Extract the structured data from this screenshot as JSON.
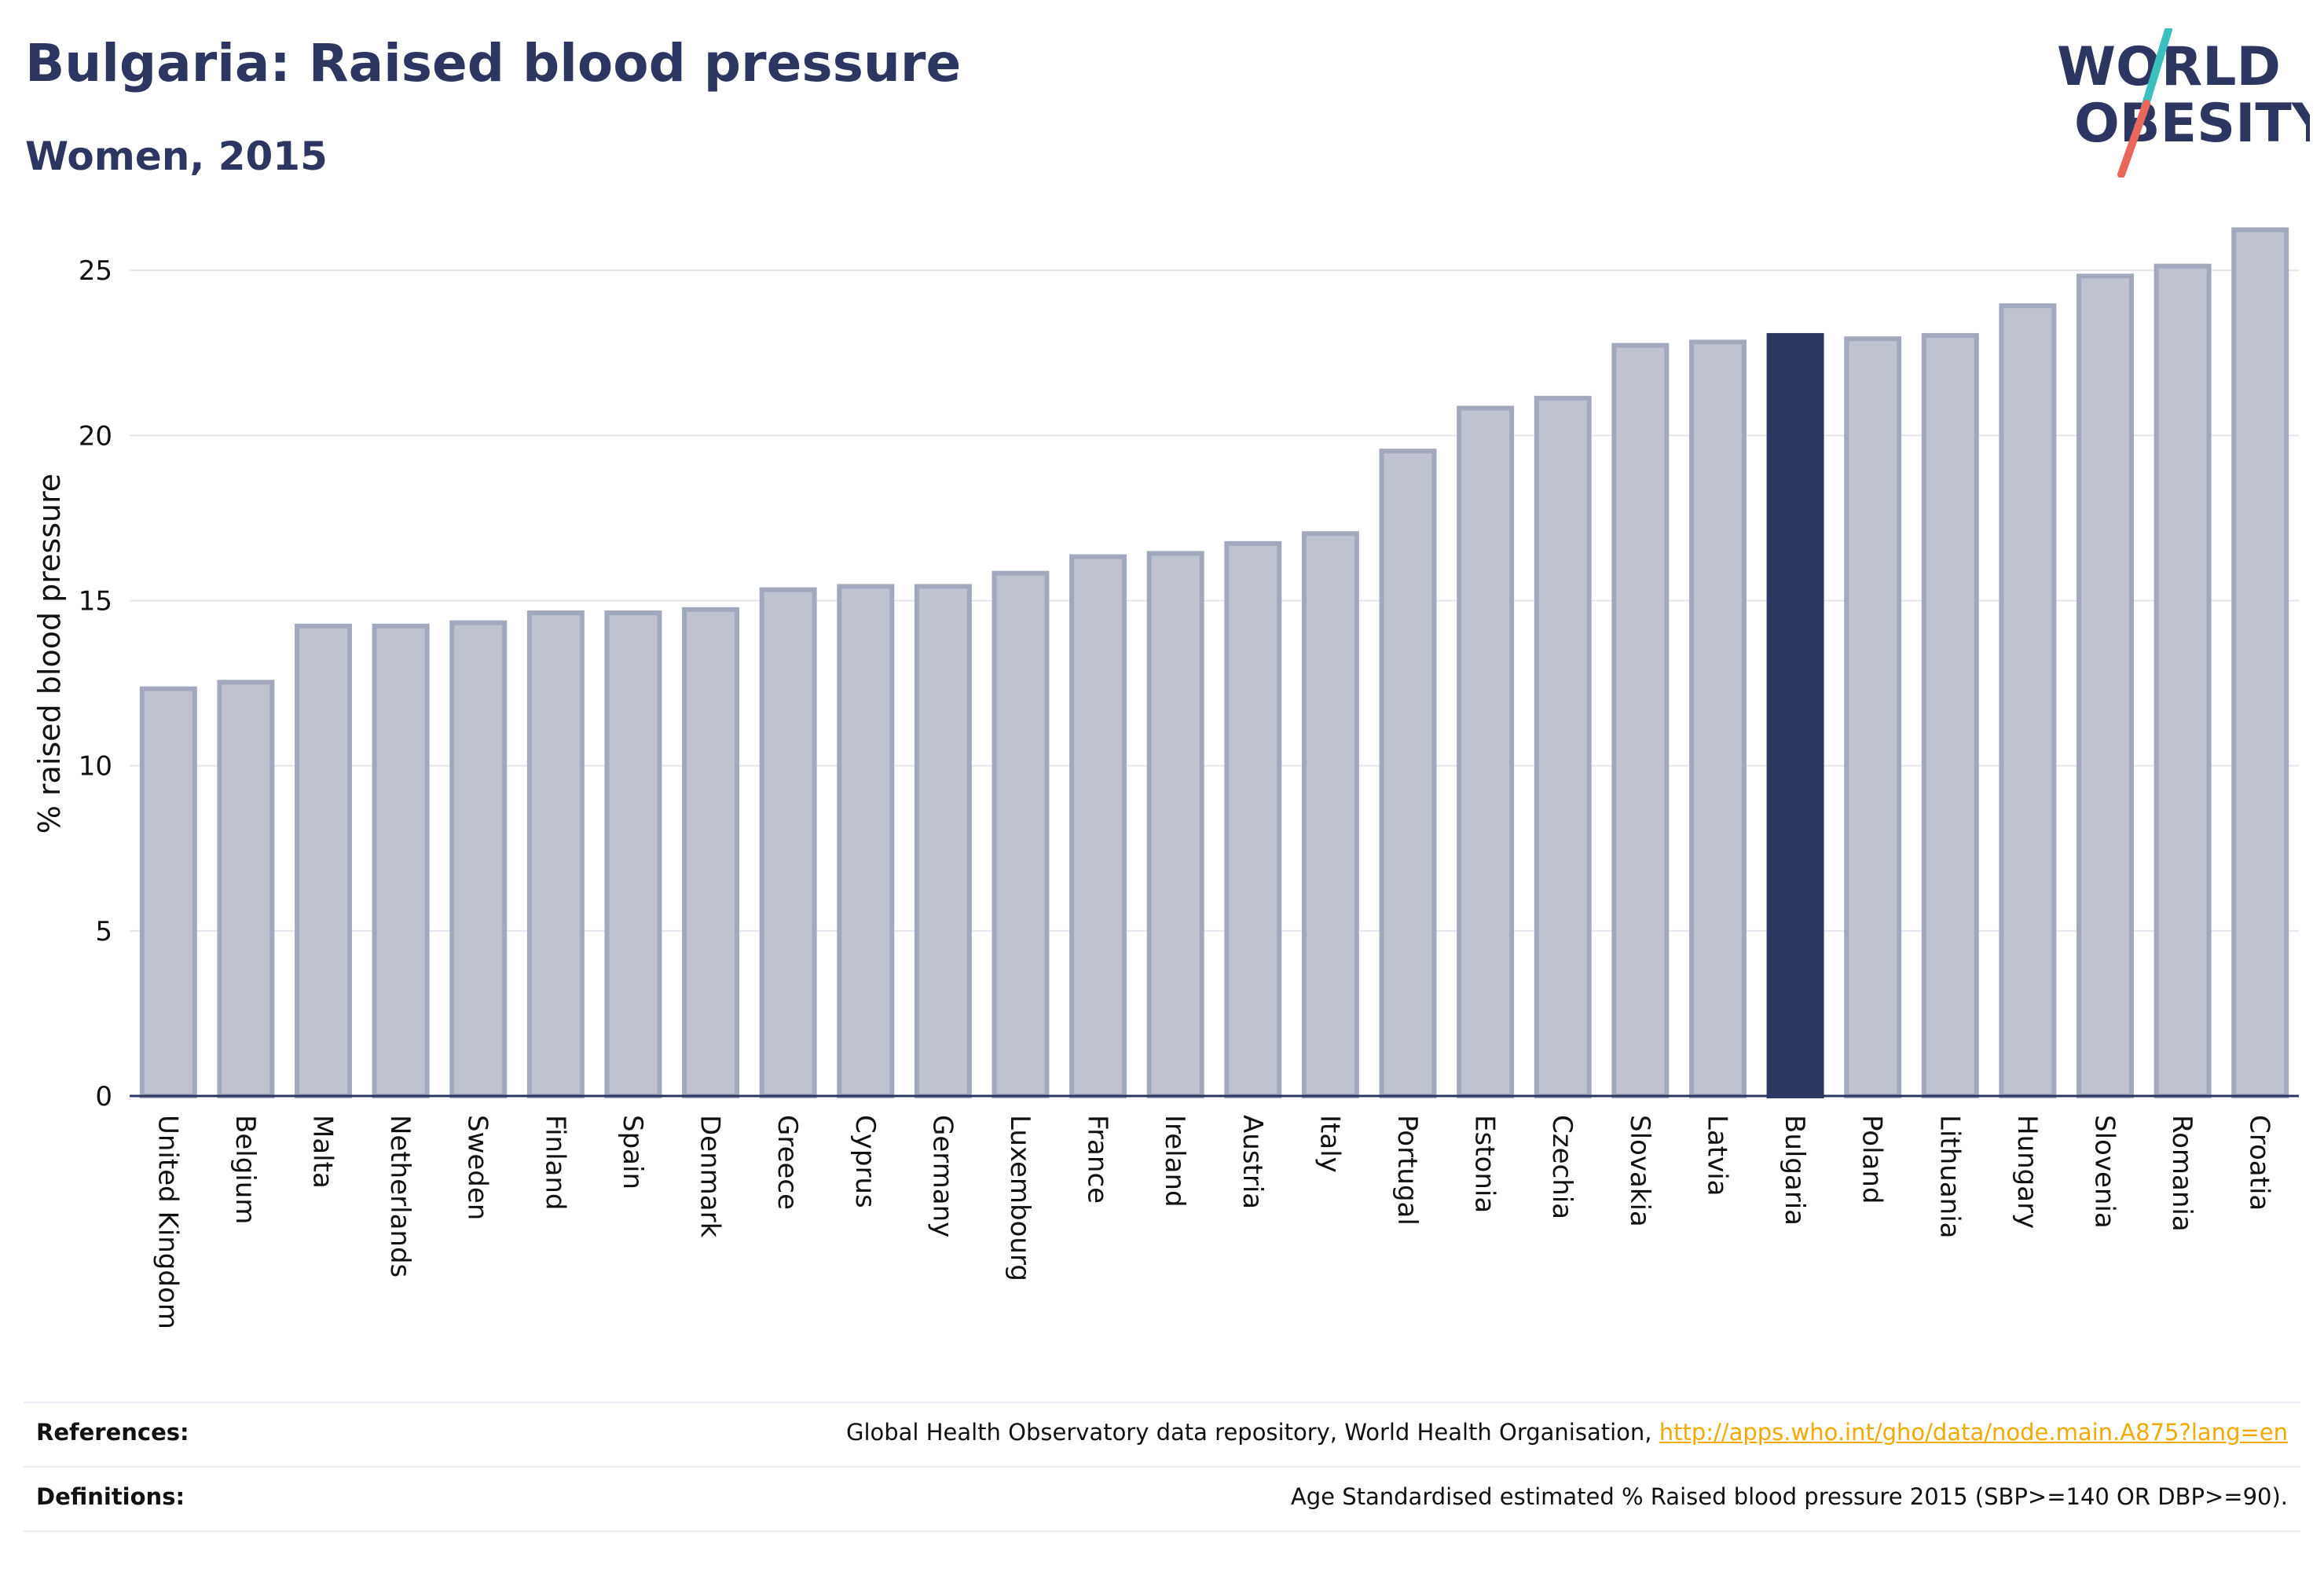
{
  "header": {
    "title": "Bulgaria: Raised blood pressure",
    "subtitle": "Women, 2015"
  },
  "logo": {
    "line1": "WORLD",
    "line2": "OBESITY",
    "text_color": "#2d3660",
    "accent_teal": "#3bbfbf",
    "accent_red": "#e8675a"
  },
  "colors": {
    "highlight_bar": "#2d3660",
    "other_bar_fill": "#bfc3d0",
    "other_bar_stroke": "#a3a9bd",
    "grid": "#e6e6ee",
    "axis": "#2d3660"
  },
  "chart_data": {
    "type": "bar",
    "title": "Bulgaria: Raised blood pressure",
    "subtitle": "Women, 2015",
    "xlabel": "",
    "ylabel": "% raised blood pressure",
    "ylim": [
      0,
      27
    ],
    "yticks": [
      0,
      5,
      10,
      15,
      20,
      25
    ],
    "grid": true,
    "highlight": "Bulgaria",
    "categories": [
      "United Kingdom",
      "Belgium",
      "Malta",
      "Netherlands",
      "Sweden",
      "Finland",
      "Spain",
      "Denmark",
      "Greece",
      "Cyprus",
      "Germany",
      "Luxembourg",
      "France",
      "Ireland",
      "Austria",
      "Italy",
      "Portugal",
      "Estonia",
      "Czechia",
      "Slovakia",
      "Latvia",
      "Bulgaria",
      "Poland",
      "Lithuania",
      "Hungary",
      "Slovenia",
      "Romania",
      "Croatia"
    ],
    "values": [
      12.4,
      12.6,
      14.3,
      14.3,
      14.4,
      14.7,
      14.7,
      14.8,
      15.4,
      15.5,
      15.5,
      15.9,
      16.4,
      16.5,
      16.8,
      17.1,
      19.6,
      20.9,
      21.2,
      22.8,
      22.9,
      23.1,
      23.0,
      23.1,
      24.0,
      24.9,
      25.2,
      26.3
    ]
  },
  "footer": {
    "references_label": "References:",
    "references_text": "Global Health Observatory data repository, World Health Organisation, ",
    "references_link": "http://apps.who.int/gho/data/node.main.A875?lang=en",
    "definitions_label": "Definitions:",
    "definitions_text": "Age Standardised estimated % Raised blood pressure 2015 (SBP>=140 OR DBP>=90)."
  }
}
